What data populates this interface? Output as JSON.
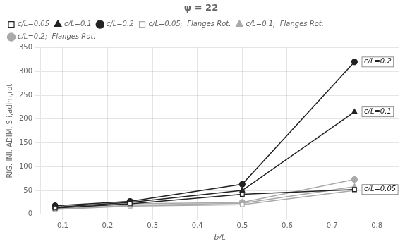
{
  "chart_data": {
    "type": "line",
    "title": "ψ = 22",
    "x_label": "b/L",
    "y_label": "RIG. INI. ADIM, S i,adim,rot",
    "x": [
      0.083,
      0.25,
      0.5,
      0.75
    ],
    "series": [
      {
        "name": "c/L=0.05",
        "color": "#222222",
        "marker": "open_square",
        "line_style": "solid",
        "values": [
          13,
          22,
          42,
          52
        ]
      },
      {
        "name": "c/L=0.1",
        "color": "#222222",
        "marker": "triangle",
        "line_style": "solid",
        "values": [
          15,
          25,
          50,
          215
        ]
      },
      {
        "name": "c/L=0.2",
        "color": "#222222",
        "marker": "circle",
        "line_style": "solid",
        "values": [
          18,
          27,
          63,
          320
        ]
      },
      {
        "name": "c/L=0.05;  Flanges Rot.",
        "color": "#aaaaaa",
        "marker": "open_square",
        "line_style": "solid",
        "values": [
          10,
          17,
          20,
          50
        ]
      },
      {
        "name": "c/L=0.1;  Flanges Rot.",
        "color": "#aaaaaa",
        "marker": "triangle",
        "line_style": "solid",
        "values": [
          11,
          19,
          23,
          58
        ]
      },
      {
        "name": "c/L=0.2;  Flanges Rot.",
        "color": "#aaaaaa",
        "marker": "circle",
        "line_style": "solid",
        "values": [
          13,
          22,
          25,
          73
        ]
      }
    ],
    "annotations": [
      {
        "text": "c/L=0.05",
        "x": 0.762,
        "y": 52
      },
      {
        "text": "c/L=0.1",
        "x": 0.762,
        "y": 215
      },
      {
        "text": "c/L=0.2",
        "x": 0.762,
        "y": 320
      }
    ],
    "xlim": [
      0.05,
      0.85
    ],
    "xticks": [
      0.1,
      0.2,
      0.3,
      0.4,
      0.5,
      0.6,
      0.7,
      0.8
    ],
    "ylim": [
      0,
      350
    ],
    "yticks": [
      0,
      50,
      100,
      150,
      200,
      250,
      300,
      350
    ],
    "grid": true,
    "legend": "upper left"
  }
}
